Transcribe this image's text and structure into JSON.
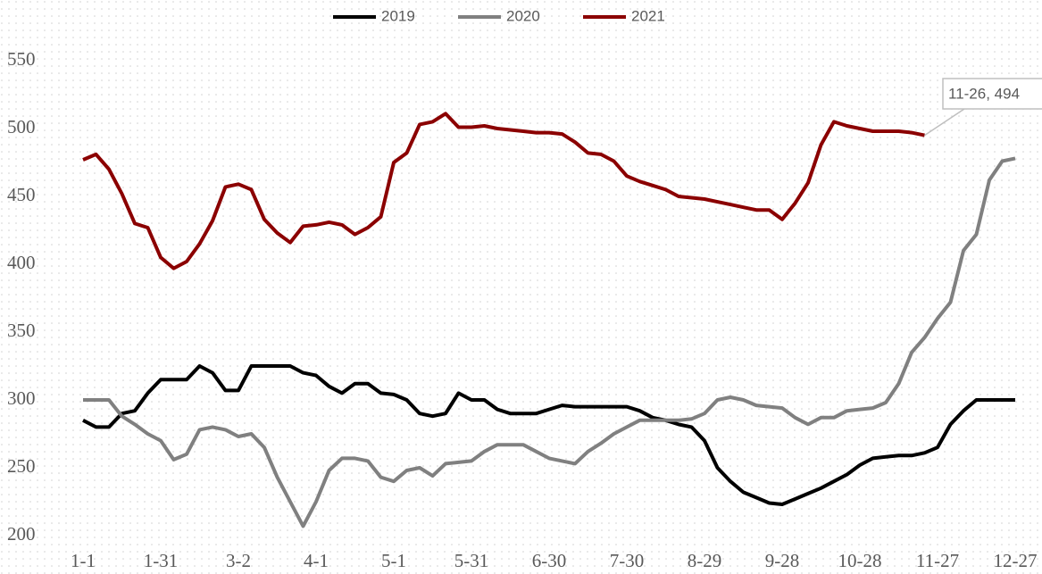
{
  "chart_data": {
    "type": "line",
    "categories": [
      "1-1",
      null,
      null,
      null,
      null,
      null,
      "1-31",
      null,
      null,
      null,
      null,
      null,
      "3-2",
      null,
      null,
      null,
      null,
      null,
      "4-1",
      null,
      null,
      null,
      null,
      null,
      "5-1",
      null,
      null,
      null,
      null,
      null,
      "5-31",
      null,
      null,
      null,
      null,
      null,
      "6-30",
      null,
      null,
      null,
      null,
      null,
      "7-30",
      null,
      null,
      null,
      null,
      null,
      "8-29",
      null,
      null,
      null,
      null,
      null,
      "9-28",
      null,
      null,
      null,
      null,
      null,
      "10-28",
      null,
      null,
      null,
      null,
      null,
      "11-27",
      null,
      null,
      null,
      null,
      null,
      "12-27"
    ],
    "series": [
      {
        "name": "2019",
        "color": "#000000",
        "values": [
          285,
          280,
          280,
          290,
          292,
          305,
          315,
          315,
          315,
          325,
          320,
          307,
          307,
          325,
          325,
          325,
          325,
          320,
          318,
          310,
          305,
          312,
          312,
          305,
          304,
          300,
          290,
          288,
          290,
          305,
          300,
          300,
          293,
          290,
          290,
          290,
          293,
          296,
          295,
          295,
          295,
          295,
          295,
          292,
          287,
          285,
          282,
          280,
          270,
          250,
          240,
          232,
          228,
          224,
          223,
          227,
          231,
          235,
          240,
          245,
          252,
          257,
          258,
          259,
          259,
          261,
          265,
          282,
          292,
          300,
          300,
          300,
          300
        ]
      },
      {
        "name": "2020",
        "color": "#808080",
        "values": [
          300,
          300,
          300,
          288,
          282,
          275,
          270,
          256,
          260,
          278,
          280,
          278,
          273,
          275,
          265,
          243,
          225,
          207,
          225,
          248,
          257,
          257,
          255,
          243,
          240,
          248,
          250,
          244,
          253,
          254,
          255,
          262,
          267,
          267,
          267,
          262,
          257,
          255,
          253,
          262,
          268,
          275,
          280,
          285,
          285,
          285,
          285,
          286,
          290,
          300,
          302,
          300,
          296,
          295,
          294,
          287,
          282,
          287,
          287,
          292,
          293,
          294,
          298,
          312,
          335,
          346,
          360,
          372,
          410,
          422,
          462,
          476,
          478
        ]
      },
      {
        "name": "2021",
        "color": "#8b0000",
        "values": [
          477,
          481,
          470,
          452,
          430,
          427,
          405,
          397,
          402,
          415,
          432,
          457,
          459,
          455,
          433,
          423,
          416,
          428,
          429,
          431,
          429,
          422,
          427,
          435,
          475,
          482,
          503,
          505,
          511,
          501,
          501,
          502,
          500,
          499,
          498,
          497,
          497,
          496,
          490,
          482,
          481,
          476,
          465,
          461,
          458,
          455,
          450,
          449,
          448,
          446,
          444,
          442,
          440,
          440,
          433,
          445,
          460,
          488,
          505,
          502,
          500,
          498,
          498,
          498,
          497,
          495,
          null,
          null,
          null,
          null,
          null,
          null,
          null
        ]
      }
    ],
    "annotations": [
      {
        "text": "11-26, 494"
      }
    ],
    "ylim": [
      200,
      550
    ],
    "yticks": [
      200,
      250,
      300,
      350,
      400,
      450,
      500,
      550
    ],
    "legend": "top",
    "grid": false
  }
}
